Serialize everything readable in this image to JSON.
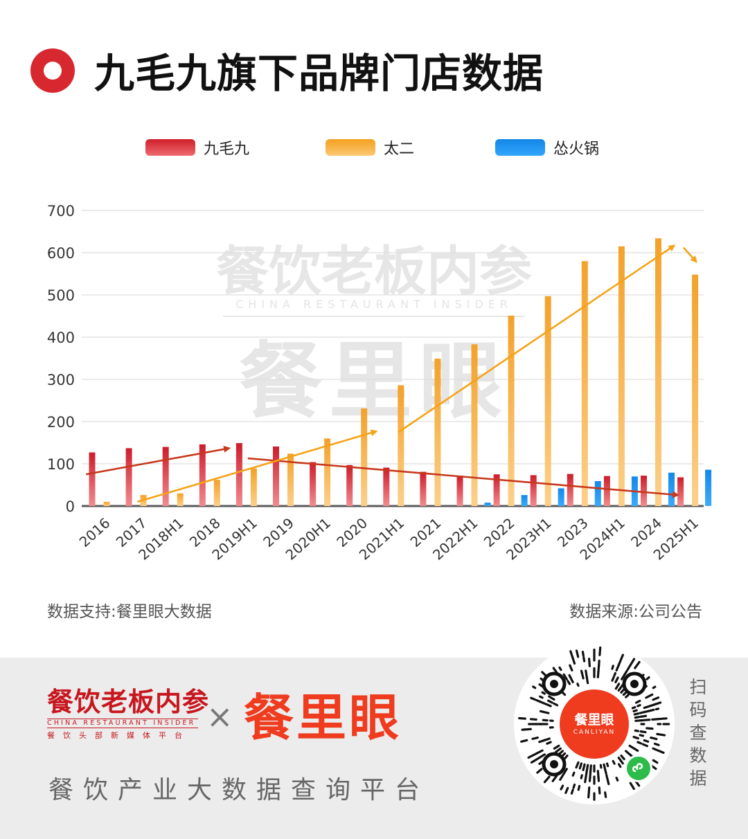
{
  "title": "九毛九旗下品牌门店数据",
  "colors": {
    "accent": "#d7282f",
    "series_jiumaojiu": "#d42b33",
    "series_taier": "#f6a93a",
    "series_song": "#1790ec",
    "trend_down": "#c7381c",
    "trend_up": "#f5a314"
  },
  "legend": [
    {
      "label": "九毛九"
    },
    {
      "label": "太二"
    },
    {
      "label": "怂火锅"
    }
  ],
  "watermark": {
    "line1": "餐饮老板内参",
    "line2": "CHINA RESTAURANT INSIDER",
    "line3": "餐里眼"
  },
  "chart_data": {
    "type": "bar",
    "categories": [
      "2016",
      "2017",
      "2018H1",
      "2018",
      "2019H1",
      "2019",
      "2020H1",
      "2020",
      "2021H1",
      "2021",
      "2022H1",
      "2022",
      "2023H1",
      "2023",
      "2024H1",
      "2024",
      "2025H1"
    ],
    "series": [
      {
        "name": "九毛九",
        "values": [
          127,
          137,
          140,
          146,
          149,
          141,
          104,
          97,
          91,
          81,
          72,
          75,
          73,
          76,
          71,
          72,
          68
        ]
      },
      {
        "name": "太二",
        "values": [
          10,
          26,
          30,
          62,
          89,
          124,
          160,
          231,
          286,
          349,
          383,
          451,
          497,
          580,
          615,
          634,
          548
        ]
      },
      {
        "name": "怂火锅",
        "values": [
          0,
          0,
          0,
          0,
          0,
          0,
          0,
          0,
          0,
          0,
          8,
          26,
          42,
          59,
          70,
          79,
          86
        ]
      }
    ],
    "ylim": [
      0,
      700
    ],
    "yticks": [
      "0",
      "100",
      "200",
      "300",
      "400",
      "500",
      "600",
      "700"
    ],
    "grid": true,
    "legend_position": "top",
    "xlabel": "",
    "ylabel": ""
  },
  "footer": {
    "support": "数据支持:餐里眼大数据",
    "source": "数据来源:公司公告"
  },
  "bottom": {
    "brand1_cn": "餐饮老板内参",
    "brand1_en": "CHINA RESTAURANT INSIDER",
    "brand1_sub": "餐饮头部新媒体平台",
    "cross": "×",
    "brand2": "餐里眼",
    "slogan": "餐饮产业大数据查询平台",
    "qr_center": "餐里眼",
    "qr_center_en": "CANLIYAN",
    "scan": "扫码查数据"
  }
}
